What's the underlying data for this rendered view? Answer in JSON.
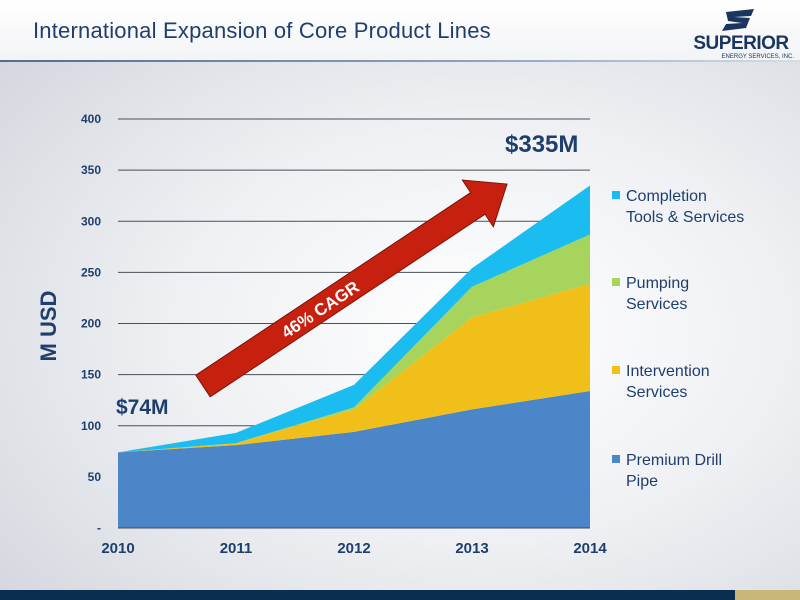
{
  "header": {
    "title": "International Expansion of Core Product Lines",
    "logo_name": "SUPERIOR",
    "logo_sub": "ENERGY SERVICES, INC."
  },
  "chart_data": {
    "type": "area",
    "stacked": true,
    "title": "International Expansion of Core Product Lines",
    "xlabel": "",
    "ylabel": "M USD",
    "x": [
      "2010",
      "2011",
      "2012",
      "2013",
      "2014"
    ],
    "ylim": [
      0,
      400
    ],
    "yticks": [
      "-",
      "50",
      "100",
      "150",
      "200",
      "250",
      "300",
      "350",
      "400"
    ],
    "grid": true,
    "legend_position": "right",
    "series": [
      {
        "name": "Premium Drill Pipe",
        "color": "#4a86c8",
        "values": [
          74,
          81,
          94,
          116,
          134
        ]
      },
      {
        "name": "Intervention Services",
        "color": "#f0bf1a",
        "values": [
          0,
          2,
          22,
          90,
          105
        ]
      },
      {
        "name": "Pumping Services",
        "color": "#a6d45c",
        "values": [
          0,
          0,
          2,
          30,
          48
        ]
      },
      {
        "name": "Completion Tools & Services",
        "color": "#1bbcef",
        "values": [
          0,
          10,
          22,
          18,
          48
        ]
      }
    ],
    "annotations": {
      "start_label": "$74M",
      "end_label": "$335M",
      "arrow_label": "46% CAGR"
    }
  },
  "colors": {
    "title": "#1f3e6e",
    "axis_text": "#1f3e6e",
    "arrow": "#c8200f",
    "gridline": "#4a4f57"
  }
}
